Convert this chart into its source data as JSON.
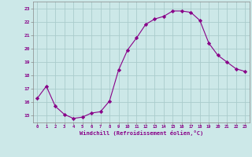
{
  "x": [
    0,
    1,
    2,
    3,
    4,
    5,
    6,
    7,
    8,
    9,
    10,
    11,
    12,
    13,
    14,
    15,
    16,
    17,
    18,
    19,
    20,
    21,
    22,
    23
  ],
  "y": [
    16.3,
    17.2,
    15.7,
    15.1,
    14.8,
    14.9,
    15.2,
    15.3,
    16.1,
    18.4,
    19.9,
    20.8,
    21.8,
    22.2,
    22.4,
    22.8,
    22.8,
    22.7,
    22.1,
    20.4,
    19.5,
    19.0,
    18.5,
    18.3
  ],
  "line_color": "#880088",
  "marker": "D",
  "marker_size": 2.2,
  "bg_color": "#cce8e8",
  "grid_color": "#aacccc",
  "xlabel": "Windchill (Refroidissement éolien,°C)",
  "xlabel_color": "#880088",
  "tick_color": "#880088",
  "ylim": [
    14.5,
    23.5
  ],
  "yticks": [
    15,
    16,
    17,
    18,
    19,
    20,
    21,
    22,
    23
  ],
  "xlim": [
    -0.5,
    23.5
  ],
  "xticks": [
    0,
    1,
    2,
    3,
    4,
    5,
    6,
    7,
    8,
    9,
    10,
    11,
    12,
    13,
    14,
    15,
    16,
    17,
    18,
    19,
    20,
    21,
    22,
    23
  ]
}
